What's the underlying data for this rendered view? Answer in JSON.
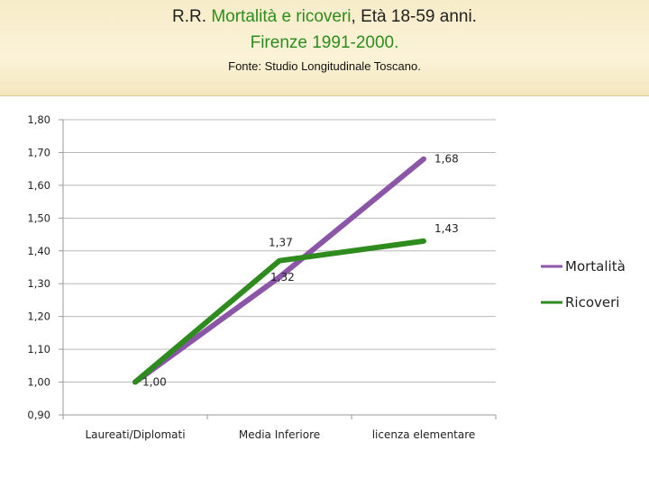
{
  "header": {
    "title_prefix": "R.R.",
    "title_green": "Mortalità e ricoveri",
    "title_suffix": ", Età 18-59 anni.",
    "title_line2": "Firenze 1991-2000.",
    "subtitle": "Fonte: Studio Longitudinale Toscano."
  },
  "chart_data": {
    "type": "line",
    "categories": [
      "Laureati/Diplomati",
      "Media Inferiore",
      "licenza elementare"
    ],
    "series": [
      {
        "name": "Mortalità",
        "values": [
          1.0,
          1.32,
          1.68
        ],
        "color": "#8b55a8",
        "labels": [
          "1,00",
          "1,32",
          "1,68"
        ]
      },
      {
        "name": "Ricoveri",
        "values": [
          1.0,
          1.37,
          1.43
        ],
        "color": "#2e8b1e",
        "labels": [
          "",
          "1,37",
          "1,43"
        ]
      }
    ],
    "ylim": [
      0.9,
      1.8
    ],
    "yticks": [
      0.9,
      1.0,
      1.1,
      1.2,
      1.3,
      1.4,
      1.5,
      1.6,
      1.7,
      1.8
    ],
    "ytick_labels": [
      "0,90",
      "1,00",
      "1,10",
      "1,20",
      "1,30",
      "1,40",
      "1,50",
      "1,60",
      "1,70",
      "1,80"
    ],
    "grid": true,
    "legend": "right"
  }
}
